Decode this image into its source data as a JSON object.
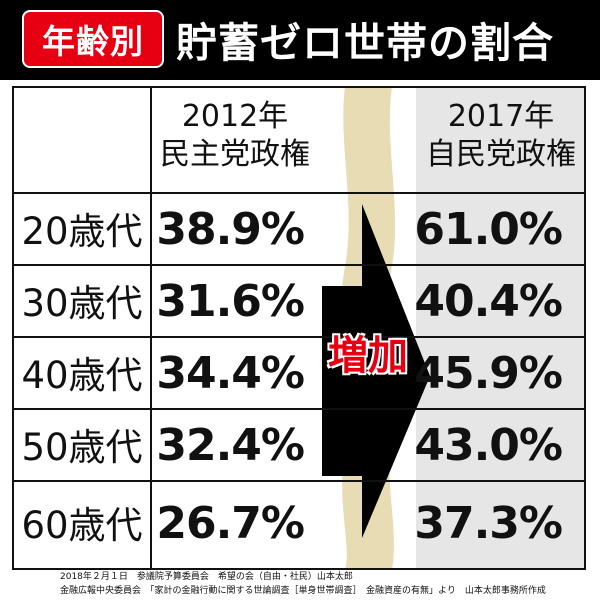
{
  "header": {
    "badge": "年齢別",
    "title": "貯蓄ゼロ世帯の割合"
  },
  "columns": [
    {
      "year": "2012年",
      "party": "民主党政権"
    },
    {
      "year": "2017年",
      "party": "自民党政権"
    }
  ],
  "arrow_label": "増加",
  "chart_data": {
    "type": "table",
    "title": "貯蓄ゼロ世帯の割合",
    "categories": [
      "20歳代",
      "30歳代",
      "40歳代",
      "50歳代",
      "60歳代"
    ],
    "series": [
      {
        "name": "2012年 民主党政権",
        "values": [
          "38.9%",
          "31.6%",
          "34.4%",
          "32.4%",
          "26.7%"
        ]
      },
      {
        "name": "2017年 自民党政権",
        "values": [
          "61.0%",
          "40.4%",
          "45.9%",
          "43.0%",
          "37.3%"
        ]
      }
    ]
  },
  "footer": {
    "line1": "2018年２月１日　参議院予算委員会　希望の会（自由・社民）山本太郎",
    "line2": "金融広報中央委員会　「家計の金融行動に関する世論調査［単身世帯調査］　金融資産の有無」より　山本太郎事務所作成"
  },
  "colors": {
    "badge": "#e60012",
    "header_bg": "#000000",
    "shade": "#e6e6e6",
    "wave": "#e8dcb4",
    "arrow": "#000000",
    "arrow_text": "#e60012"
  }
}
